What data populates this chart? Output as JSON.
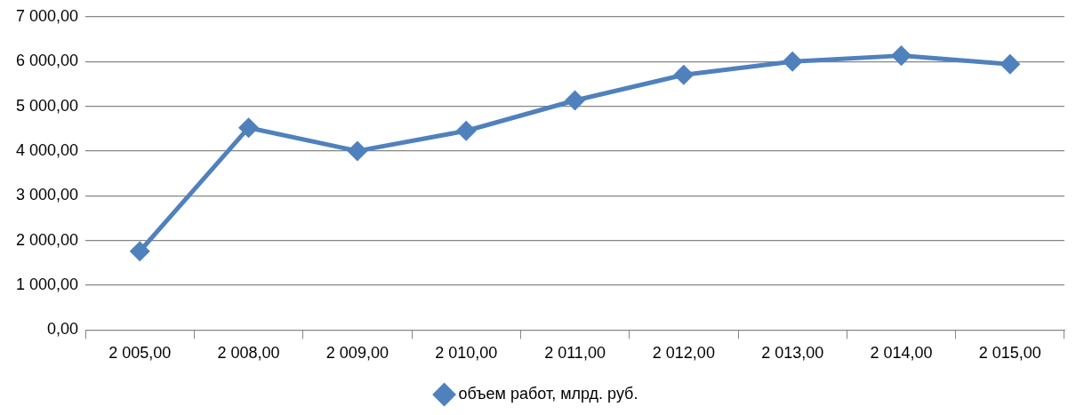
{
  "chart_data": {
    "type": "line",
    "categories": [
      "2 005,00",
      "2 008,00",
      "2 009,00",
      "2 010,00",
      "2 011,00",
      "2 012,00",
      "2 013,00",
      "2 014,00",
      "2 015,00"
    ],
    "series": [
      {
        "name": "объем работ, млрд. руб.",
        "color": "#4f81bd",
        "values": [
          1760,
          4520,
          4000,
          4450,
          5130,
          5700,
          6000,
          6130,
          5940
        ]
      }
    ],
    "ylim": [
      0,
      7000
    ],
    "yticks": [
      {
        "value": 0,
        "label": "0,00"
      },
      {
        "value": 1000,
        "label": "1 000,00"
      },
      {
        "value": 2000,
        "label": "2 000,00"
      },
      {
        "value": 3000,
        "label": "3 000,00"
      },
      {
        "value": 4000,
        "label": "4 000,00"
      },
      {
        "value": 5000,
        "label": "5 000,00"
      },
      {
        "value": 6000,
        "label": "6 000,00"
      },
      {
        "value": 7000,
        "label": "7 000,00"
      }
    ],
    "grid": "y",
    "legend": "bottom",
    "marker": "diamond",
    "line_style": "solid"
  }
}
